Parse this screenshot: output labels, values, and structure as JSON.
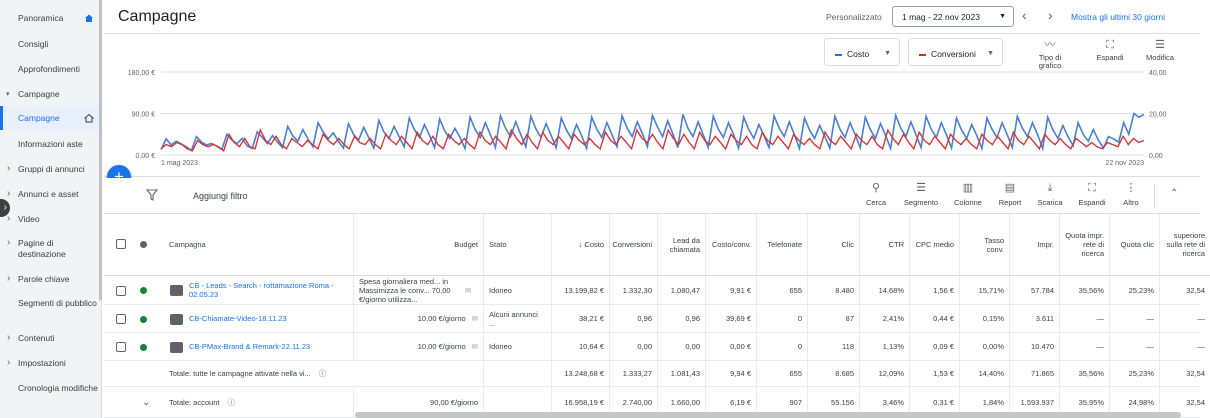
{
  "sidebar": {
    "items": [
      {
        "label": "Panoramica",
        "type": "top"
      },
      {
        "label": "Consigli",
        "type": "sub"
      },
      {
        "label": "Approfondimenti",
        "type": "sub"
      },
      {
        "label": "Campagne",
        "type": "open"
      },
      {
        "label": "Campagne",
        "type": "active"
      },
      {
        "label": "Informazioni aste",
        "type": "sub"
      },
      {
        "label": "Gruppi di annunci",
        "type": "arrow"
      },
      {
        "label": "Annunci e asset",
        "type": "arrow"
      },
      {
        "label": "Video",
        "type": "arrow"
      },
      {
        "label": "Pagine di destinazione",
        "type": "arrow"
      },
      {
        "label": "Parole chiave",
        "type": "arrow"
      },
      {
        "label": "Segmenti di pubblico",
        "type": "sub"
      },
      {
        "label": "Contenuti",
        "type": "arrow"
      },
      {
        "label": "Impostazioni",
        "type": "arrow"
      },
      {
        "label": "Cronologia modifiche",
        "type": "sub"
      }
    ]
  },
  "header": {
    "title": "Campagne",
    "personalize": "Personalizzato",
    "date_range": "1 mag - 22 nov 2023",
    "show_last": "Mostra gli ultimi 30 giorni"
  },
  "chart_controls": {
    "metric1": "Costo",
    "metric2": "Conversioni",
    "chart_type": "Tipo di grafico",
    "expand": "Espandi",
    "edit": "Modifica"
  },
  "chart_data": {
    "type": "line",
    "x_start_label": "1 mag 2023",
    "x_end_label": "22 nov 2023",
    "left_axis_ticks": [
      "180,00 €",
      "90,00 €",
      "0,00 €"
    ],
    "right_axis_ticks": [
      "40,00",
      "20,00",
      "0,00"
    ],
    "left_ylim": [
      0,
      180
    ],
    "right_ylim": [
      0,
      40
    ],
    "grid": true,
    "colors": {
      "costo": "#4a7fd0",
      "conversioni": "#d0383d"
    },
    "series": [
      {
        "name": "Costo",
        "axis": "left",
        "values": [
          12,
          35,
          22,
          30,
          24,
          18,
          10,
          40,
          28,
          22,
          25,
          19,
          12,
          45,
          32,
          25,
          36,
          20,
          14,
          50,
          38,
          25,
          42,
          28,
          16,
          62,
          42,
          30,
          55,
          35,
          18,
          70,
          50,
          35,
          48,
          30,
          15,
          68,
          45,
          32,
          60,
          38,
          15,
          75,
          50,
          36,
          62,
          40,
          18,
          80,
          55,
          38,
          66,
          42,
          16,
          78,
          52,
          36,
          58,
          38,
          14,
          82,
          55,
          38,
          70,
          44,
          16,
          85,
          58,
          40,
          72,
          44,
          18,
          84,
          56,
          38,
          68,
          42,
          16,
          80,
          54,
          36,
          66,
          42,
          14,
          82,
          56,
          38,
          70,
          44,
          18,
          85,
          58,
          40,
          72,
          46,
          18,
          86,
          60,
          40,
          74,
          46,
          16,
          88,
          58,
          40,
          72,
          44,
          16,
          84,
          56,
          38,
          70,
          44,
          15,
          82,
          55,
          36,
          66,
          42,
          16,
          85,
          58,
          40,
          72,
          44,
          14,
          80,
          54,
          36,
          64,
          40,
          15,
          84,
          56,
          38,
          70,
          44,
          16,
          82,
          55,
          36,
          68,
          42,
          14,
          86,
          58,
          40,
          72,
          44,
          16,
          84,
          56,
          38,
          70,
          44,
          15,
          80,
          54,
          36,
          66,
          42,
          14,
          80,
          56,
          38,
          70,
          44,
          16,
          84,
          58,
          40,
          70,
          44,
          14,
          82,
          55,
          36,
          64,
          40,
          20,
          70,
          45,
          30,
          55,
          32,
          15,
          40,
          35,
          28,
          70,
          45,
          90,
          82,
          88
        ]
      },
      {
        "name": "Conversioni",
        "axis": "right",
        "values": [
          3,
          5,
          4,
          6,
          5,
          3,
          2,
          7,
          5,
          4,
          5,
          4,
          2,
          10,
          6,
          4,
          8,
          4,
          3,
          12,
          7,
          5,
          9,
          5,
          3,
          8,
          6,
          4,
          7,
          5,
          3,
          10,
          7,
          5,
          8,
          5,
          3,
          9,
          6,
          5,
          8,
          5,
          3,
          10,
          7,
          5,
          9,
          6,
          3,
          11,
          7,
          5,
          9,
          5,
          3,
          10,
          7,
          5,
          8,
          5,
          3,
          11,
          7,
          5,
          9,
          6,
          3,
          12,
          8,
          5,
          10,
          6,
          3,
          11,
          7,
          5,
          9,
          6,
          3,
          10,
          7,
          5,
          8,
          5,
          3,
          11,
          7,
          5,
          9,
          6,
          3,
          12,
          8,
          6,
          10,
          6,
          3,
          12,
          8,
          5,
          10,
          6,
          3,
          11,
          7,
          5,
          9,
          6,
          3,
          10,
          7,
          5,
          9,
          5,
          3,
          11,
          7,
          5,
          9,
          6,
          3,
          10,
          7,
          5,
          8,
          5,
          3,
          11,
          7,
          5,
          9,
          6,
          3,
          10,
          7,
          5,
          9,
          5,
          3,
          12,
          8,
          5,
          10,
          6,
          3,
          11,
          7,
          5,
          9,
          6,
          3,
          10,
          7,
          5,
          8,
          5,
          3,
          10,
          7,
          5,
          9,
          6,
          3,
          11,
          7,
          5,
          9,
          6,
          3,
          10,
          7,
          5,
          8,
          5,
          3,
          8,
          6,
          4,
          6,
          4,
          3,
          6,
          5,
          4,
          9,
          5,
          8,
          6,
          7
        ]
      }
    ]
  },
  "toolbar": {
    "add_filter": "Aggiungi filtro",
    "tools": [
      {
        "label": "Cerca",
        "icon": "search-icon"
      },
      {
        "label": "Segmento",
        "icon": "segment-icon"
      },
      {
        "label": "Colonne",
        "icon": "columns-icon"
      },
      {
        "label": "Report",
        "icon": "report-icon"
      },
      {
        "label": "Scarica",
        "icon": "download-icon"
      },
      {
        "label": "Espandi",
        "icon": "expand-icon"
      },
      {
        "label": "Altro",
        "icon": "more-icon"
      }
    ]
  },
  "table": {
    "headers": [
      "Campagna",
      "Budget",
      "Stato",
      "Costo",
      "Conversioni",
      "Lead da chiamata",
      "Costo/conv.",
      "Telefonate",
      "Clic",
      "CTR",
      "CPC medio",
      "Tasso conv.",
      "Impr.",
      "Quota impr. rete di ricerca",
      "Quota clic",
      "superiore sulla rete di ricerca"
    ],
    "rows": [
      {
        "status_color": "#188038",
        "name": "CB - Leads - Search - rottamazione Roma - 02.05.23",
        "budget": "Spesa giornaliera med... in Massimizza le conv... 70,00 €/giorno utilizza...",
        "stato": "Idoneo",
        "values": [
          "13.199,82 €",
          "1.332,30",
          "1.080,47",
          "9,91 €",
          "655",
          "8.480",
          "14,68%",
          "1,56 €",
          "15,71%",
          "57.784",
          "35,56%",
          "25,23%",
          "32,54"
        ]
      },
      {
        "status_color": "#188038",
        "name": "CB-Chiamate-Video-18.11.23",
        "budget": "10,00 €/giorno",
        "stato": "Alcuni annunci ...",
        "values": [
          "38,21 €",
          "0,96",
          "0,96",
          "39,69 €",
          "0",
          "87",
          "2,41%",
          "0,44 €",
          "0,15%",
          "3.611",
          "—",
          "—",
          "—"
        ]
      },
      {
        "status_color": "#188038",
        "name": "CB-PMax-Brand & Remark-22.11.23",
        "budget": "10,00 €/giorno",
        "stato": "Idoneo",
        "values": [
          "10,64 €",
          "0,00",
          "0,00",
          "0,00 €",
          "0",
          "118",
          "1,13%",
          "0,09 €",
          "0,00%",
          "10.470",
          "—",
          "—",
          "—"
        ]
      }
    ],
    "total_enabled": {
      "label": "Totale: tutte le campagne attivate nella vi...",
      "budget": "",
      "values": [
        "13.248,68 €",
        "1.333,27",
        "1.081,43",
        "9,94 €",
        "655",
        "8.685",
        "12,09%",
        "1,53 €",
        "14,40%",
        "71.865",
        "35,56%",
        "25,23%",
        "32,54"
      ]
    },
    "total_account": {
      "label": "Totale: account",
      "budget": "90,00 €/giorno",
      "values": [
        "16.958,19 €",
        "2.740,00",
        "1.660,00",
        "6,19 €",
        "907",
        "55.156",
        "3,46%",
        "0,31 €",
        "1,84%",
        "1.593.937",
        "35,95%",
        "24,98%",
        "32,54"
      ]
    }
  }
}
